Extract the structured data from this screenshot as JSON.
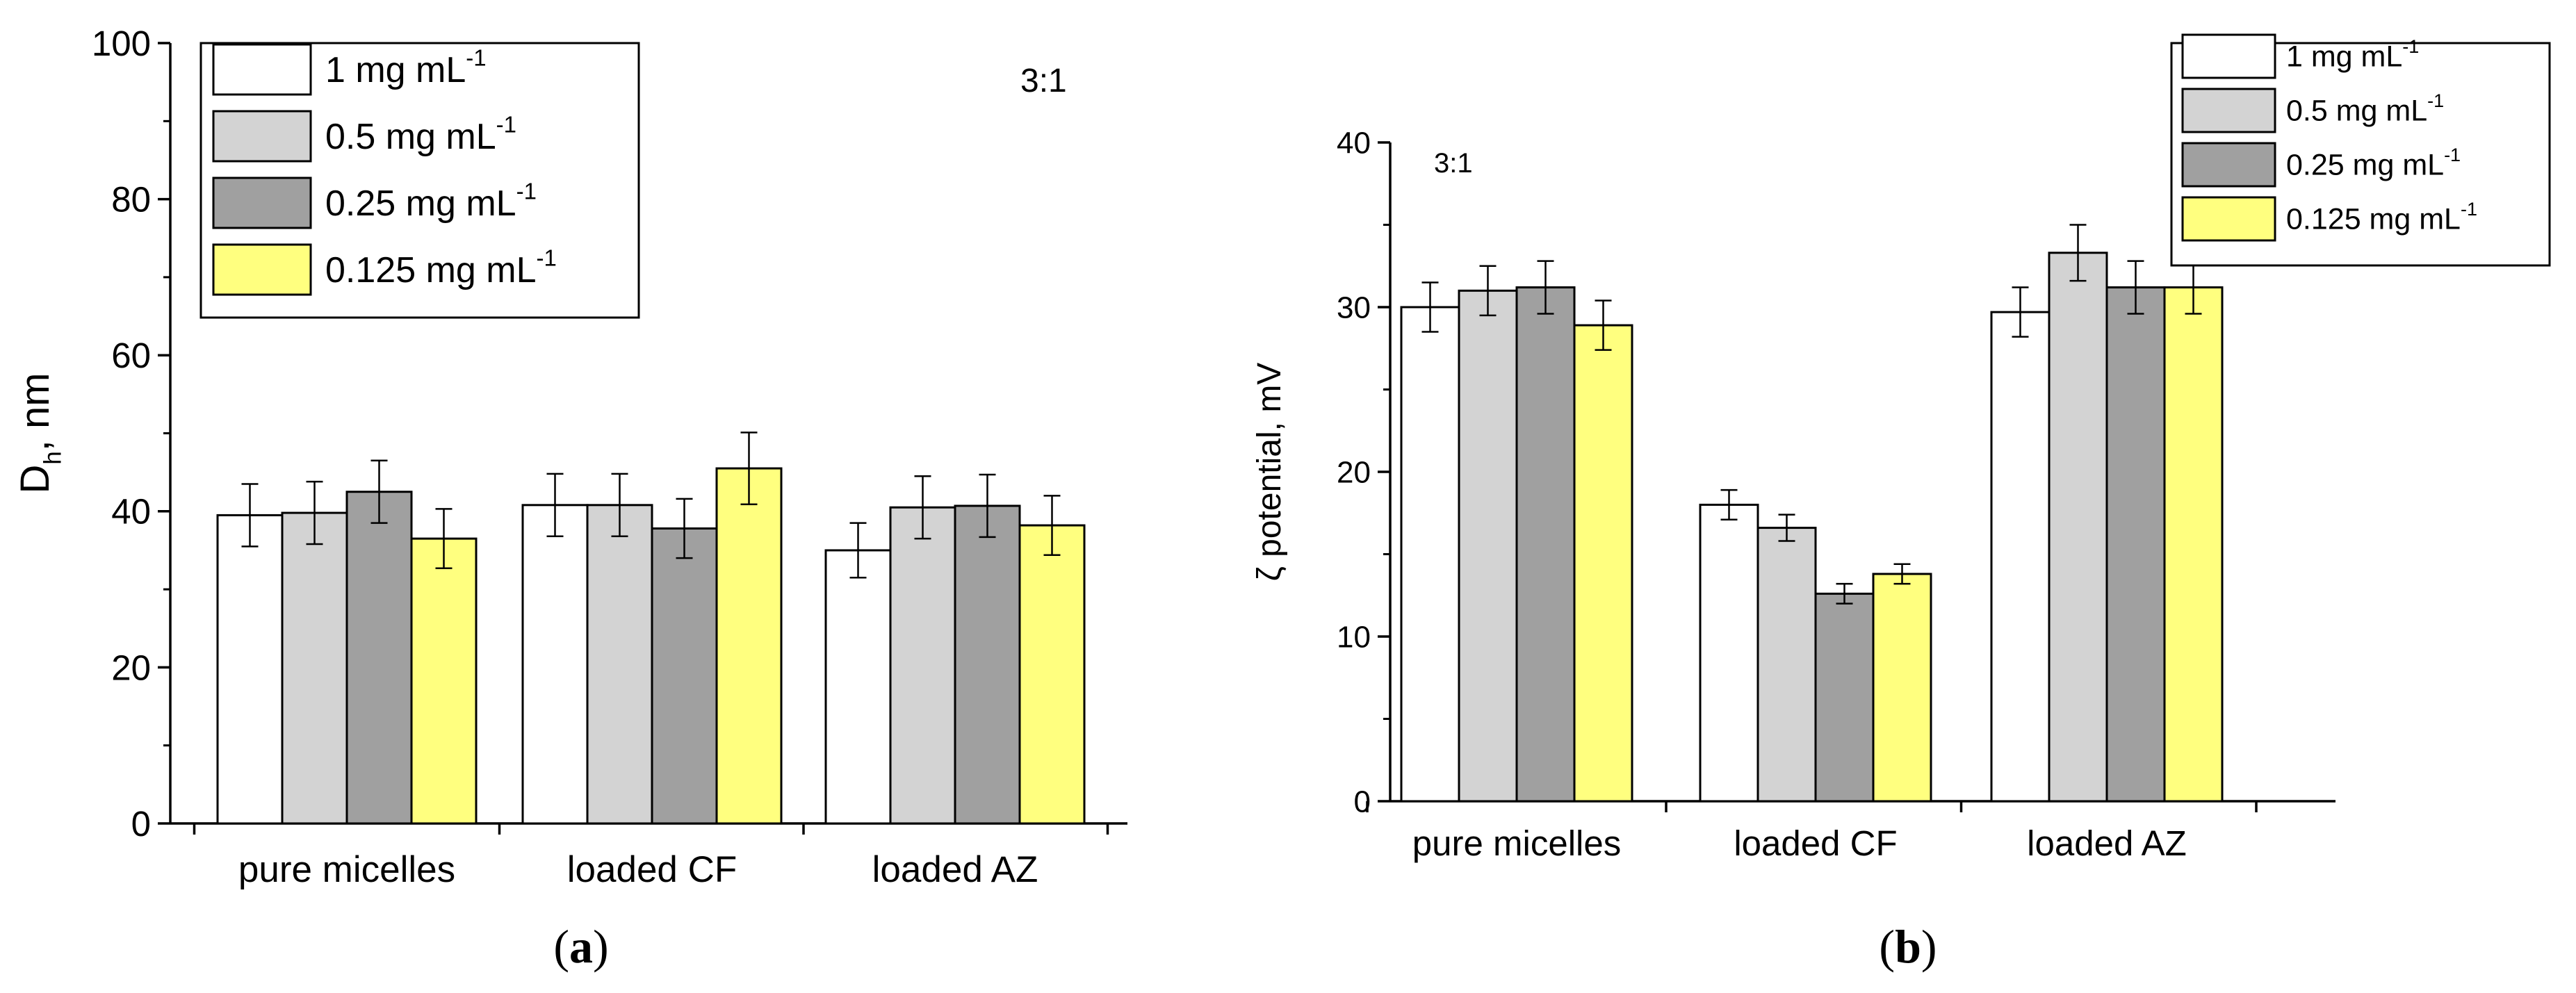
{
  "colors": {
    "series": [
      "#ffffff",
      "#d3d3d3",
      "#a0a0a0",
      "#ffff7f"
    ],
    "axis": "#000000",
    "background": "#ffffff"
  },
  "chart_data": [
    {
      "type": "bar",
      "panel_label": "(a)",
      "panel_letter": "a",
      "ylabel_main": "D",
      "ylabel_sub": "h",
      "ylabel_rest": ", nm",
      "xlabel": "",
      "annotation": "3:1",
      "ylim": [
        0,
        100
      ],
      "yticks": [
        0,
        20,
        40,
        60,
        80,
        100
      ],
      "tick_labels": [
        "0",
        "20",
        "40",
        "60",
        "80",
        "100"
      ],
      "categories": [
        "pure micelles",
        "loaded CF",
        "loaded AZ"
      ],
      "legend_placement": "top-left",
      "series": [
        {
          "name": "1 mg mL",
          "sup": "-1",
          "values": [
            39.5,
            40.8,
            35.0
          ],
          "errors": [
            4.0,
            4.0,
            3.5
          ]
        },
        {
          "name": "0.5 mg mL",
          "sup": "-1",
          "values": [
            39.8,
            40.8,
            40.5
          ],
          "errors": [
            4.0,
            4.0,
            4.0
          ]
        },
        {
          "name": "0.25 mg mL",
          "sup": "-1",
          "values": [
            42.5,
            37.8,
            40.7
          ],
          "errors": [
            4.0,
            3.8,
            4.0
          ]
        },
        {
          "name": "0.125 mg mL",
          "sup": "-1",
          "values": [
            36.5,
            45.5,
            38.2
          ],
          "errors": [
            3.8,
            4.6,
            3.8
          ]
        }
      ]
    },
    {
      "type": "bar",
      "panel_label": "(b)",
      "panel_letter": "b",
      "ylabel_main": "ζ potential, mV",
      "ylabel_sub": "",
      "ylabel_rest": "",
      "xlabel": "",
      "annotation": "3:1",
      "ylim": [
        0,
        40
      ],
      "yticks": [
        0,
        10,
        20,
        30,
        40
      ],
      "tick_labels": [
        "0",
        "10",
        "20",
        "30",
        "40"
      ],
      "categories": [
        "pure micelles",
        "loaded CF",
        "loaded AZ"
      ],
      "legend_placement": "outside-top-right",
      "series": [
        {
          "name": "1 mg mL",
          "sup": "-1",
          "values": [
            30.0,
            18.0,
            29.7
          ],
          "errors": [
            1.5,
            0.9,
            1.5
          ]
        },
        {
          "name": "0.5 mg mL",
          "sup": "-1",
          "values": [
            31.0,
            16.6,
            33.3
          ],
          "errors": [
            1.5,
            0.8,
            1.7
          ]
        },
        {
          "name": "0.25 mg mL",
          "sup": "-1",
          "values": [
            31.2,
            12.6,
            31.2
          ],
          "errors": [
            1.6,
            0.6,
            1.6
          ]
        },
        {
          "name": "0.125 mg mL",
          "sup": "-1",
          "values": [
            28.9,
            13.8,
            31.2
          ],
          "errors": [
            1.5,
            0.6,
            1.6
          ]
        }
      ]
    }
  ]
}
